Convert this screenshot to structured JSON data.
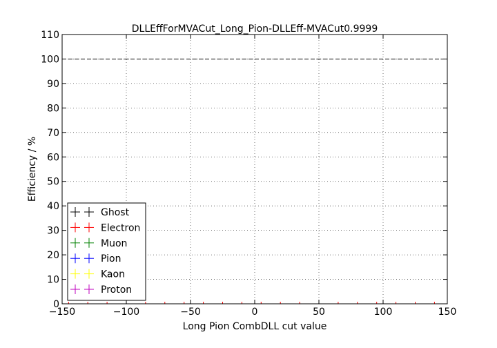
{
  "chart_data": {
    "type": "scatter",
    "title": "DLLEffForMVACut_Long_Pion-DLLEff-MVACut0.9999",
    "xlabel": "Long Pion CombDLL cut value",
    "ylabel": "Efficiency / %",
    "xlim": [
      -150,
      150
    ],
    "ylim": [
      0,
      110
    ],
    "xticks": [
      -150,
      -100,
      -50,
      0,
      50,
      100,
      150
    ],
    "xtick_labels": [
      "−150",
      "−100",
      "−50",
      "0",
      "50",
      "100",
      "150"
    ],
    "yticks": [
      0,
      10,
      20,
      30,
      40,
      50,
      60,
      70,
      80,
      90,
      100,
      110
    ],
    "grid": true,
    "reference_line": {
      "y": 100,
      "style": "dashed",
      "color": "#000000"
    },
    "legend_position": "lower-left",
    "series": [
      {
        "name": "Ghost",
        "color": "#000000",
        "points": []
      },
      {
        "name": "Electron",
        "color": "#ff0000",
        "points": []
      },
      {
        "name": "Muon",
        "color": "#008000",
        "points": []
      },
      {
        "name": "Pion",
        "color": "#0000ff",
        "points": []
      },
      {
        "name": "Kaon",
        "color": "#ffff00",
        "points": []
      },
      {
        "name": "Proton",
        "color": "#bf00bf",
        "points": []
      }
    ],
    "baseline_markers": {
      "y": 0,
      "color": "#ff0000",
      "x": [
        -145,
        -130,
        -115,
        -100,
        -85,
        -70,
        -55,
        -40,
        -25,
        -10,
        5,
        20,
        35,
        50,
        65,
        80,
        95,
        110,
        125,
        140
      ]
    }
  }
}
